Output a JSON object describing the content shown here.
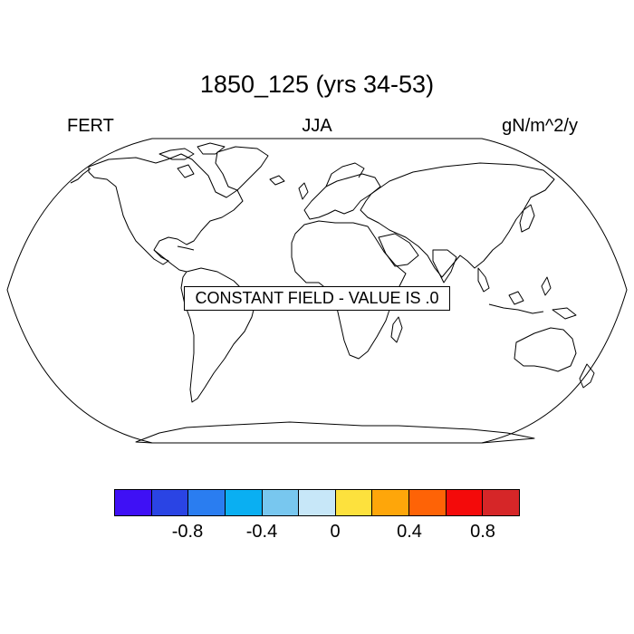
{
  "header": {
    "title": "1850_125 (yrs 34-53)",
    "left_label": "FERT",
    "center_label": "JJA",
    "right_label": "gN/m^2/y"
  },
  "map": {
    "projection": "Robinson",
    "notice": "CONSTANT FIELD - VALUE IS .0",
    "coastline_color": "#000000",
    "fill_color": "#ffffff"
  },
  "colorbar": {
    "colors": [
      "#3f10f5",
      "#2a44e4",
      "#2a7df0",
      "#0aaff2",
      "#78c7ef",
      "#c7e7f8",
      "#fde13d",
      "#fea60a",
      "#fe6306",
      "#f40a0a",
      "#d62628"
    ],
    "tick_labels": [
      "-0.8",
      "-0.4",
      "0",
      "0.4",
      "0.8"
    ]
  }
}
